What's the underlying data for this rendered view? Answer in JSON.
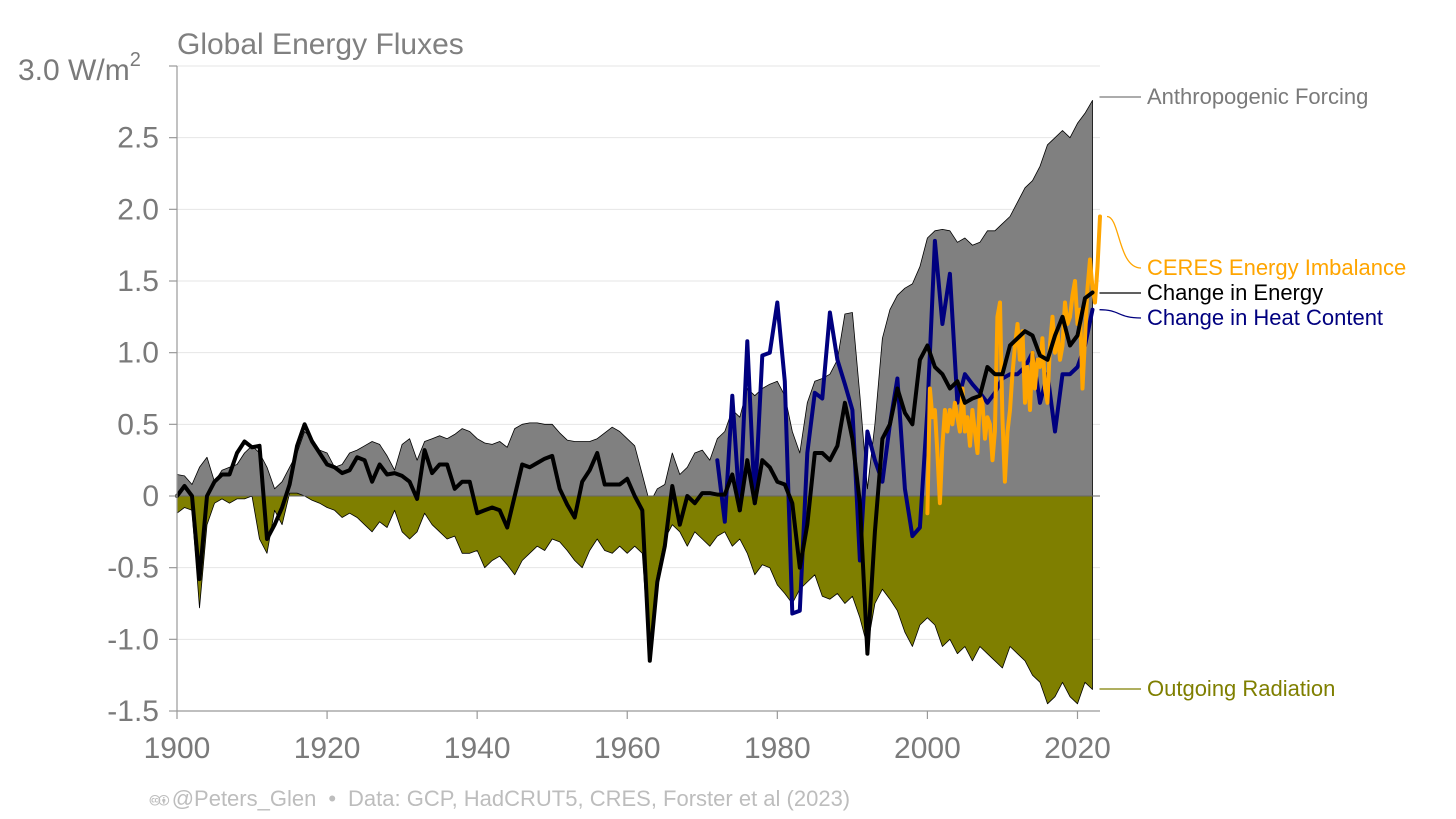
{
  "chart_data": {
    "type": "area",
    "title": "Global Energy Fluxes",
    "ylabel": "3.0 W/m",
    "ylabel_sup": "2",
    "xlim": [
      1900,
      2023
    ],
    "ylim": [
      -1.5,
      3.0
    ],
    "x_ticks": [
      1900,
      1920,
      1940,
      1960,
      1980,
      2000,
      2020
    ],
    "y_ticks": [
      {
        "v": 2.5,
        "label": "2.5"
      },
      {
        "v": 2.0,
        "label": "2.0"
      },
      {
        "v": 1.5,
        "label": "1.5"
      },
      {
        "v": 1.0,
        "label": "1.0"
      },
      {
        "v": 0.5,
        "label": "0.5"
      },
      {
        "v": 0,
        "label": "0"
      },
      {
        "v": -0.5,
        "label": "-0.5"
      },
      {
        "v": -1.0,
        "label": "-1.0"
      },
      {
        "v": -1.5,
        "label": "-1.5"
      }
    ],
    "grid": true,
    "legend": "right, direct labels",
    "series": [
      {
        "name": "Anthropogenic Forcing",
        "kind": "area",
        "color": "#808080",
        "label_y": 2.76,
        "x": [
          1900,
          1901,
          1902,
          1903,
          1904,
          1905,
          1906,
          1907,
          1908,
          1909,
          1910,
          1911,
          1912,
          1913,
          1914,
          1915,
          1916,
          1917,
          1918,
          1919,
          1920,
          1921,
          1922,
          1923,
          1924,
          1925,
          1926,
          1927,
          1928,
          1929,
          1930,
          1931,
          1932,
          1933,
          1934,
          1935,
          1936,
          1937,
          1938,
          1939,
          1940,
          1941,
          1942,
          1943,
          1944,
          1945,
          1946,
          1947,
          1948,
          1949,
          1950,
          1951,
          1952,
          1953,
          1954,
          1955,
          1956,
          1957,
          1958,
          1959,
          1960,
          1961,
          1962,
          1963,
          1964,
          1965,
          1966,
          1967,
          1968,
          1969,
          1970,
          1971,
          1972,
          1973,
          1974,
          1975,
          1976,
          1977,
          1978,
          1979,
          1980,
          1981,
          1982,
          1983,
          1984,
          1985,
          1986,
          1987,
          1988,
          1989,
          1990,
          1991,
          1992,
          1993,
          1994,
          1995,
          1996,
          1997,
          1998,
          1999,
          2000,
          2001,
          2002,
          2003,
          2004,
          2005,
          2006,
          2007,
          2008,
          2009,
          2010,
          2011,
          2012,
          2013,
          2014,
          2015,
          2016,
          2017,
          2018,
          2019,
          2020,
          2021,
          2022
        ],
        "y": [
          0.15,
          0.14,
          0.08,
          0.2,
          0.27,
          0.1,
          0.18,
          0.2,
          0.22,
          0.3,
          0.35,
          0.3,
          0.2,
          0.05,
          0.1,
          0.2,
          0.3,
          0.45,
          0.4,
          0.32,
          0.3,
          0.2,
          0.22,
          0.3,
          0.32,
          0.35,
          0.38,
          0.36,
          0.28,
          0.18,
          0.36,
          0.4,
          0.25,
          0.38,
          0.4,
          0.42,
          0.4,
          0.43,
          0.47,
          0.45,
          0.4,
          0.37,
          0.36,
          0.38,
          0.34,
          0.47,
          0.5,
          0.51,
          0.51,
          0.5,
          0.5,
          0.44,
          0.39,
          0.38,
          0.38,
          0.38,
          0.4,
          0.44,
          0.48,
          0.45,
          0.4,
          0.35,
          0.15,
          -0.05,
          0.05,
          0.08,
          0.3,
          0.15,
          0.2,
          0.3,
          0.32,
          0.25,
          0.4,
          0.45,
          0.6,
          0.55,
          0.75,
          0.7,
          0.75,
          0.78,
          0.8,
          0.7,
          0.45,
          0.3,
          0.65,
          0.8,
          0.82,
          0.85,
          0.95,
          1.27,
          1.28,
          0.7,
          0.05,
          0.5,
          1.1,
          1.3,
          1.4,
          1.45,
          1.48,
          1.6,
          1.8,
          1.85,
          1.86,
          1.85,
          1.77,
          1.8,
          1.75,
          1.77,
          1.85,
          1.85,
          1.9,
          1.95,
          2.05,
          2.15,
          2.2,
          2.3,
          2.45,
          2.5,
          2.55,
          2.5,
          2.6,
          2.67,
          2.76
        ]
      },
      {
        "name": "Outgoing Radiation",
        "kind": "area",
        "color": "#7f7f00",
        "label_y": -1.35,
        "x": [
          1900,
          1901,
          1902,
          1903,
          1904,
          1905,
          1906,
          1907,
          1908,
          1909,
          1910,
          1911,
          1912,
          1913,
          1914,
          1915,
          1916,
          1917,
          1918,
          1919,
          1920,
          1921,
          1922,
          1923,
          1924,
          1925,
          1926,
          1927,
          1928,
          1929,
          1930,
          1931,
          1932,
          1933,
          1934,
          1935,
          1936,
          1937,
          1938,
          1939,
          1940,
          1941,
          1942,
          1943,
          1944,
          1945,
          1946,
          1947,
          1948,
          1949,
          1950,
          1951,
          1952,
          1953,
          1954,
          1955,
          1956,
          1957,
          1958,
          1959,
          1960,
          1961,
          1962,
          1963,
          1964,
          1965,
          1966,
          1967,
          1968,
          1969,
          1970,
          1971,
          1972,
          1973,
          1974,
          1975,
          1976,
          1977,
          1978,
          1979,
          1980,
          1981,
          1982,
          1983,
          1984,
          1985,
          1986,
          1987,
          1988,
          1989,
          1990,
          1991,
          1992,
          1993,
          1994,
          1995,
          1996,
          1997,
          1998,
          1999,
          2000,
          2001,
          2002,
          2003,
          2004,
          2005,
          2006,
          2007,
          2008,
          2009,
          2010,
          2011,
          2012,
          2013,
          2014,
          2015,
          2016,
          2017,
          2018,
          2019,
          2020,
          2021,
          2022
        ],
        "y": [
          -0.12,
          -0.08,
          -0.1,
          -0.78,
          -0.2,
          -0.05,
          -0.02,
          -0.05,
          -0.02,
          -0.02,
          0.0,
          -0.3,
          -0.4,
          -0.1,
          -0.2,
          0.02,
          0.02,
          0.0,
          -0.03,
          -0.05,
          -0.08,
          -0.1,
          -0.15,
          -0.12,
          -0.15,
          -0.2,
          -0.25,
          -0.18,
          -0.22,
          -0.1,
          -0.25,
          -0.3,
          -0.25,
          -0.12,
          -0.2,
          -0.25,
          -0.3,
          -0.28,
          -0.4,
          -0.4,
          -0.38,
          -0.5,
          -0.45,
          -0.42,
          -0.48,
          -0.55,
          -0.45,
          -0.4,
          -0.35,
          -0.38,
          -0.3,
          -0.32,
          -0.38,
          -0.45,
          -0.5,
          -0.38,
          -0.3,
          -0.38,
          -0.4,
          -0.35,
          -0.4,
          -0.35,
          -0.4,
          -1.15,
          -0.55,
          -0.3,
          -0.2,
          -0.25,
          -0.35,
          -0.25,
          -0.3,
          -0.35,
          -0.28,
          -0.25,
          -0.35,
          -0.3,
          -0.4,
          -0.55,
          -0.48,
          -0.5,
          -0.62,
          -0.68,
          -0.75,
          -0.65,
          -0.6,
          -0.55,
          -0.7,
          -0.72,
          -0.68,
          -0.75,
          -0.7,
          -0.85,
          -1.05,
          -0.75,
          -0.65,
          -0.72,
          -0.8,
          -0.95,
          -1.05,
          -0.9,
          -0.85,
          -0.9,
          -1.05,
          -1.0,
          -1.1,
          -1.05,
          -1.15,
          -1.05,
          -1.1,
          -1.15,
          -1.2,
          -1.05,
          -1.1,
          -1.15,
          -1.25,
          -1.3,
          -1.45,
          -1.4,
          -1.3,
          -1.4,
          -1.45,
          -1.3,
          -1.35
        ]
      },
      {
        "name": "Change in Heat Content",
        "kind": "line",
        "color": "#00007f",
        "label_y": 1.25,
        "x": [
          1972,
          1973,
          1974,
          1975,
          1976,
          1977,
          1978,
          1979,
          1980,
          1981,
          1982,
          1983,
          1984,
          1985,
          1986,
          1987,
          1988,
          1989,
          1990,
          1991,
          1992,
          1993,
          1994,
          1995,
          1996,
          1997,
          1998,
          1999,
          2000,
          2001,
          2002,
          2003,
          2004,
          2005,
          2006,
          2007,
          2008,
          2009,
          2010,
          2011,
          2012,
          2013,
          2014,
          2015,
          2016,
          2017,
          2018,
          2019,
          2020,
          2021,
          2022
        ],
        "y": [
          0.25,
          -0.18,
          0.7,
          -0.1,
          1.08,
          -0.05,
          0.98,
          1.0,
          1.35,
          0.8,
          -0.82,
          -0.8,
          0.3,
          0.72,
          0.68,
          1.28,
          0.95,
          0.78,
          0.6,
          -0.45,
          0.45,
          0.25,
          0.1,
          0.5,
          0.82,
          0.05,
          -0.28,
          -0.22,
          0.6,
          1.78,
          1.2,
          1.55,
          0.65,
          0.85,
          0.78,
          0.72,
          0.65,
          0.72,
          0.82,
          0.85,
          0.85,
          0.9,
          1.0,
          0.65,
          0.85,
          0.45,
          0.85,
          0.85,
          0.9,
          1.05,
          1.3
        ]
      },
      {
        "name": "CERES Energy Imbalance",
        "kind": "line",
        "color": "#ffa500",
        "label_y": 1.56,
        "x": [
          2000.0,
          2000.33,
          2000.67,
          2001.0,
          2001.33,
          2001.67,
          2002.0,
          2002.33,
          2002.67,
          2003.0,
          2003.33,
          2003.67,
          2004.0,
          2004.33,
          2004.67,
          2005.0,
          2005.33,
          2005.67,
          2006.0,
          2006.33,
          2006.67,
          2007.0,
          2007.33,
          2007.67,
          2008.0,
          2008.33,
          2008.67,
          2009.0,
          2009.33,
          2009.67,
          2010.0,
          2010.33,
          2010.67,
          2011.0,
          2011.33,
          2011.67,
          2012.0,
          2012.33,
          2012.67,
          2013.0,
          2013.33,
          2013.67,
          2014.0,
          2014.33,
          2014.67,
          2015.0,
          2015.33,
          2015.67,
          2016.0,
          2016.33,
          2016.67,
          2017.0,
          2017.33,
          2017.67,
          2018.0,
          2018.33,
          2018.67,
          2019.0,
          2019.33,
          2019.67,
          2020.0,
          2020.33,
          2020.67,
          2021.0,
          2021.33,
          2021.67,
          2022.0,
          2022.33,
          2022.67,
          2023.0
        ],
        "y": [
          -0.12,
          0.75,
          0.55,
          0.6,
          0.3,
          -0.05,
          0.35,
          0.6,
          0.45,
          0.6,
          0.5,
          0.65,
          0.55,
          0.45,
          0.75,
          0.45,
          0.55,
          0.35,
          0.6,
          0.45,
          0.3,
          0.7,
          0.65,
          0.4,
          0.55,
          0.5,
          0.25,
          0.45,
          1.25,
          1.35,
          0.55,
          0.1,
          0.45,
          0.6,
          0.85,
          1.05,
          1.2,
          0.95,
          1.15,
          0.65,
          0.9,
          0.6,
          1.0,
          0.75,
          0.95,
          0.9,
          1.1,
          0.75,
          0.65,
          1.05,
          1.25,
          1.0,
          1.15,
          0.95,
          1.05,
          1.35,
          1.2,
          1.25,
          1.4,
          1.5,
          1.2,
          1.3,
          0.75,
          1.1,
          1.45,
          1.65,
          1.45,
          1.35,
          1.6,
          1.95
        ]
      },
      {
        "name": "Change in Energy",
        "kind": "line",
        "color": "#000000",
        "label_y": 1.42,
        "x": [
          1900,
          1901,
          1902,
          1903,
          1904,
          1905,
          1906,
          1907,
          1908,
          1909,
          1910,
          1911,
          1912,
          1913,
          1914,
          1915,
          1916,
          1917,
          1918,
          1919,
          1920,
          1921,
          1922,
          1923,
          1924,
          1925,
          1926,
          1927,
          1928,
          1929,
          1930,
          1931,
          1932,
          1933,
          1934,
          1935,
          1936,
          1937,
          1938,
          1939,
          1940,
          1941,
          1942,
          1943,
          1944,
          1945,
          1946,
          1947,
          1948,
          1949,
          1950,
          1951,
          1952,
          1953,
          1954,
          1955,
          1956,
          1957,
          1958,
          1959,
          1960,
          1961,
          1962,
          1963,
          1964,
          1965,
          1966,
          1967,
          1968,
          1969,
          1970,
          1971,
          1972,
          1973,
          1974,
          1975,
          1976,
          1977,
          1978,
          1979,
          1980,
          1981,
          1982,
          1983,
          1984,
          1985,
          1986,
          1987,
          1988,
          1989,
          1990,
          1991,
          1992,
          1993,
          1994,
          1995,
          1996,
          1997,
          1998,
          1999,
          2000,
          2001,
          2002,
          2003,
          2004,
          2005,
          2006,
          2007,
          2008,
          2009,
          2010,
          2011,
          2012,
          2013,
          2014,
          2015,
          2016,
          2017,
          2018,
          2019,
          2020,
          2021,
          2022
        ],
        "y": [
          0.0,
          0.07,
          0.0,
          -0.58,
          0.0,
          0.1,
          0.15,
          0.15,
          0.3,
          0.38,
          0.34,
          0.35,
          -0.3,
          -0.2,
          -0.08,
          0.08,
          0.35,
          0.5,
          0.38,
          0.3,
          0.22,
          0.2,
          0.16,
          0.18,
          0.27,
          0.25,
          0.1,
          0.22,
          0.15,
          0.16,
          0.14,
          0.1,
          -0.02,
          0.32,
          0.16,
          0.22,
          0.22,
          0.05,
          0.1,
          0.1,
          -0.12,
          -0.1,
          -0.08,
          -0.1,
          -0.22,
          0.0,
          0.22,
          0.2,
          0.23,
          0.26,
          0.28,
          0.05,
          -0.06,
          -0.15,
          0.1,
          0.18,
          0.3,
          0.08,
          0.08,
          0.08,
          0.12,
          0.0,
          -0.1,
          -1.15,
          -0.6,
          -0.35,
          0.07,
          -0.2,
          0.0,
          -0.05,
          0.02,
          0.02,
          0.01,
          0.01,
          0.15,
          -0.1,
          0.25,
          -0.05,
          0.25,
          0.2,
          0.1,
          0.08,
          -0.05,
          -0.5,
          -0.2,
          0.3,
          0.3,
          0.25,
          0.35,
          0.65,
          0.4,
          -0.05,
          -1.1,
          -0.25,
          0.4,
          0.5,
          0.75,
          0.58,
          0.5,
          0.95,
          1.05,
          0.9,
          0.85,
          0.75,
          0.8,
          0.65,
          0.68,
          0.7,
          0.9,
          0.85,
          0.85,
          1.05,
          1.1,
          1.15,
          1.12,
          0.98,
          0.95,
          1.12,
          1.25,
          1.05,
          1.12,
          1.38,
          1.42
        ]
      }
    ]
  },
  "footer": {
    "cc_icons": "🅭🅯",
    "author": "@Peters_Glen",
    "separator": "•",
    "source": "Data: GCP, HadCRUT5, CRES, Forster et al (2023)"
  }
}
